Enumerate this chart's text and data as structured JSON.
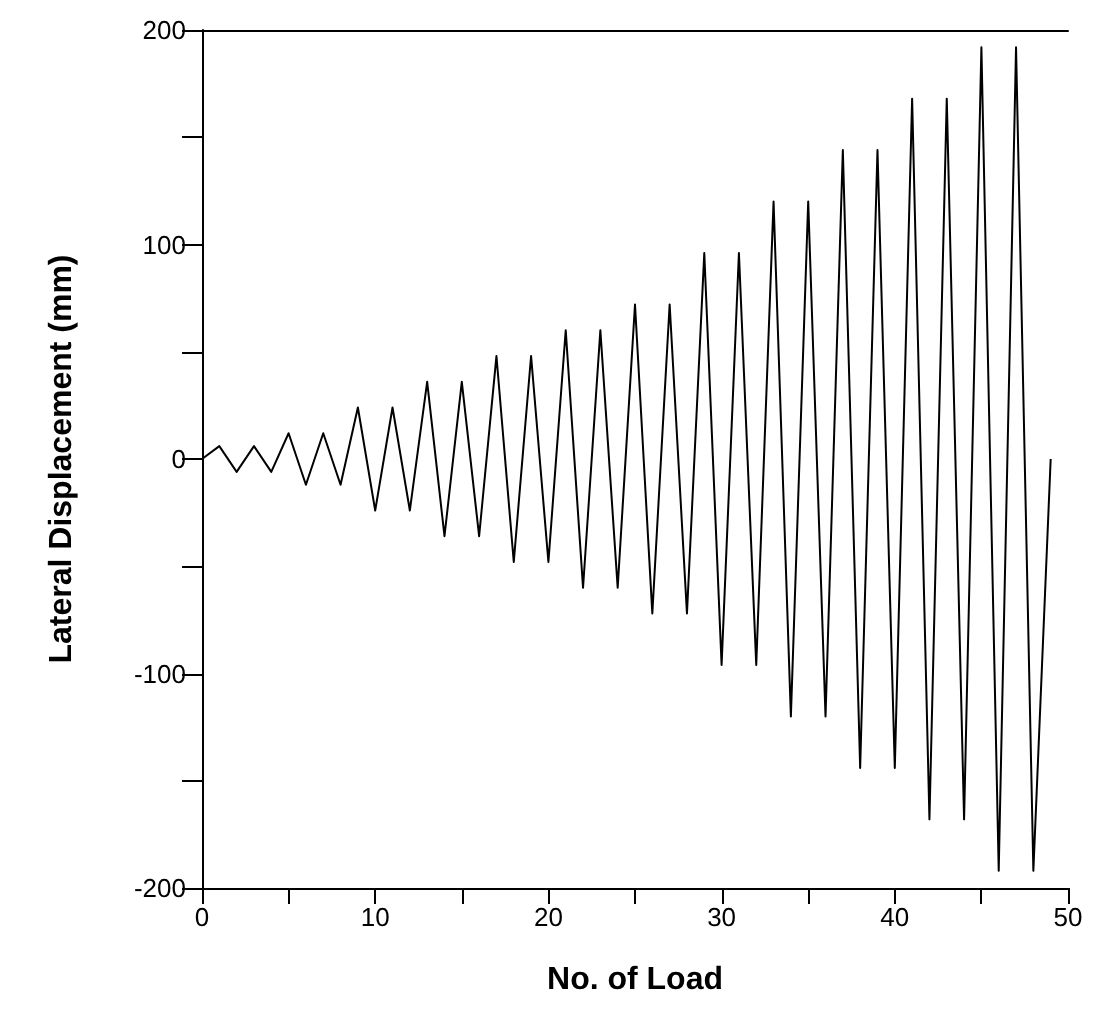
{
  "chart_data": {
    "type": "line",
    "xlabel": "No. of Load",
    "ylabel": "Lateral Displacement (mm)",
    "x": [
      0,
      1,
      2,
      3,
      4,
      5,
      6,
      7,
      8,
      9,
      10,
      11,
      12,
      13,
      14,
      15,
      16,
      17,
      18,
      19,
      20,
      21,
      22,
      23,
      24,
      25,
      26,
      27,
      28,
      29,
      30,
      31,
      32,
      33,
      34,
      35,
      36,
      37,
      38,
      39,
      40,
      41,
      42,
      43,
      44,
      45,
      46,
      47,
      48,
      49
    ],
    "series": [
      {
        "color": "#000000",
        "values": [
          0,
          6,
          -6,
          6,
          -6,
          12,
          -12,
          12,
          -12,
          24,
          -24,
          24,
          -24,
          36,
          -36,
          36,
          -36,
          48,
          -48,
          48,
          -48,
          60,
          -60,
          60,
          -60,
          72,
          -72,
          72,
          -72,
          96,
          -96,
          96,
          -96,
          120,
          -120,
          120,
          -120,
          144,
          -144,
          144,
          -144,
          168,
          -168,
          168,
          -168,
          192,
          -192,
          192,
          -192,
          0
        ]
      }
    ],
    "xlim": [
      0,
      50
    ],
    "xticks": [
      0,
      {
        "value": 5,
        "label": null
      },
      10,
      {
        "value": 15,
        "label": null
      },
      20,
      {
        "value": 25,
        "label": null
      },
      30,
      {
        "value": 35,
        "label": null
      },
      40,
      {
        "value": 45,
        "label": null
      },
      50
    ],
    "ylim": [
      -200,
      200
    ],
    "yticks": [
      -200,
      {
        "value": -150,
        "label": null
      },
      -100,
      {
        "value": -50,
        "label": null
      },
      0,
      {
        "value": 50,
        "label": null
      },
      100,
      {
        "value": 150,
        "label": null
      },
      200
    ],
    "grid": false,
    "marker": "none",
    "line_style": "solid"
  }
}
